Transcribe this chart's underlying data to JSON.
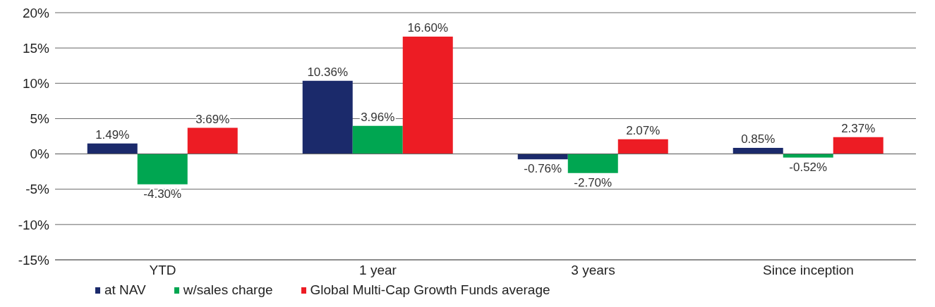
{
  "chart_data": {
    "type": "bar",
    "categories": [
      "YTD",
      "1 year",
      "3 years",
      "Since inception"
    ],
    "series": [
      {
        "name": "at NAV",
        "color": "#1b2a6b",
        "values": [
          1.49,
          10.36,
          -0.76,
          0.85
        ],
        "value_labels": [
          "1.49%",
          "10.36%",
          "-0.76%",
          "0.85%"
        ]
      },
      {
        "name": "w/sales charge",
        "color": "#00a651",
        "values": [
          -4.3,
          3.96,
          -2.7,
          -0.52
        ],
        "value_labels": [
          "-4.30%",
          "3.96%",
          "-2.70%",
          "-0.52%"
        ]
      },
      {
        "name": "Global Multi-Cap Growth Funds average",
        "color": "#ed1c24",
        "values": [
          3.69,
          16.6,
          2.07,
          2.37
        ],
        "value_labels": [
          "3.69%",
          "16.60%",
          "2.07%",
          "2.37%"
        ]
      }
    ],
    "ylim": [
      -15,
      20
    ],
    "yticks": [
      {
        "value": -15,
        "label": "-15%"
      },
      {
        "value": -10,
        "label": "-10%"
      },
      {
        "value": -5,
        "label": "-5%"
      },
      {
        "value": 0,
        "label": "0%"
      },
      {
        "value": 5,
        "label": "5%"
      },
      {
        "value": 10,
        "label": "10%"
      },
      {
        "value": 15,
        "label": "15%"
      },
      {
        "value": 20,
        "label": "20%"
      }
    ],
    "grid": "y",
    "legend": "bottom",
    "marker": "square"
  }
}
